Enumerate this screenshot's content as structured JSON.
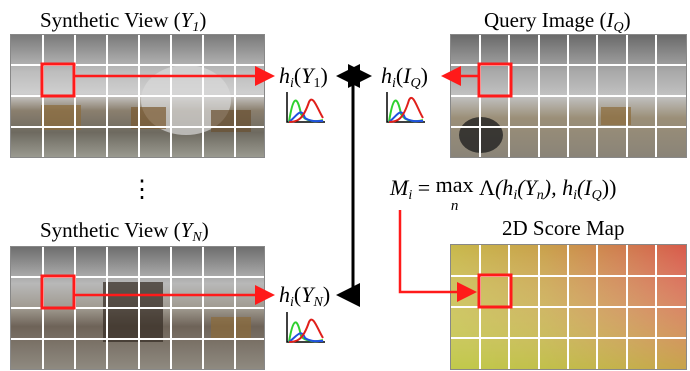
{
  "labels": {
    "synthetic_view_1": "Synthetic View",
    "synthetic_view_1_sym": "Y",
    "synthetic_view_1_sub": "1",
    "synthetic_view_n": "Synthetic View",
    "synthetic_view_n_sym": "Y",
    "synthetic_view_n_sub": "N",
    "query_image": "Query Image",
    "query_image_sym": "I",
    "query_image_sub": "Q",
    "score_map": "2D Score Map",
    "ellipsis": "⋮"
  },
  "hist_labels": {
    "h_y1": "h",
    "h_y1_sub": "i",
    "h_y1_arg": "Y",
    "h_y1_arg_sub": "1",
    "h_iq": "h",
    "h_iq_sub": "i",
    "h_iq_arg": "I",
    "h_iq_arg_sub": "Q",
    "h_yn": "h",
    "h_yn_sub": "i",
    "h_yn_arg": "Y",
    "h_yn_arg_sub": "N"
  },
  "formula": {
    "lhs": "M",
    "lhs_sub": "i",
    "eq": "=",
    "op": "max",
    "op_sub": "n",
    "lambda": "Λ",
    "body": "(h",
    "body_sub": "i",
    "arg1": "(Y",
    "arg1_sub": "n",
    "mid": "), h",
    "mid_sub": "i",
    "arg2": "(I",
    "arg2_sub": "Q",
    "end": "))"
  },
  "colors": {
    "highlight": "#ff1a1a",
    "arrow_black": "#000000",
    "grid_line": "#ffffff",
    "hist_red": "#e0201b",
    "hist_green": "#2fd02f",
    "hist_blue": "#2050e0"
  }
}
